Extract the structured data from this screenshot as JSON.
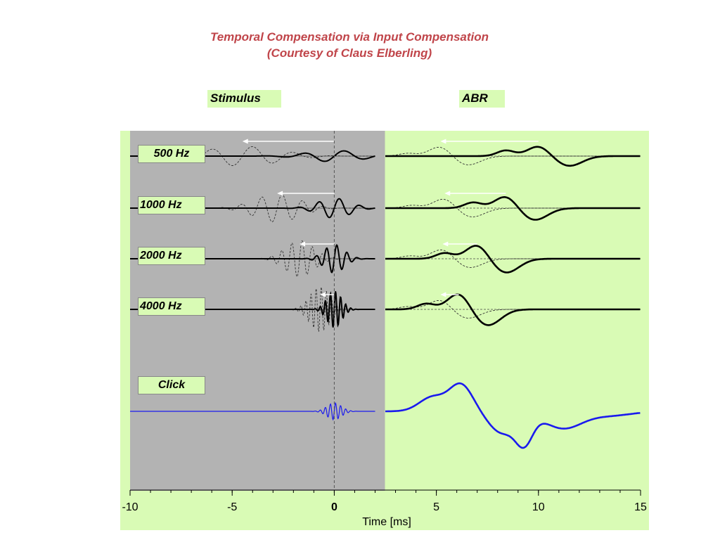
{
  "title_line1": "Temporal Compensation via Input Compensation",
  "title_line2": "(Courtesy of Claus Elberling)",
  "panels": {
    "stimulus": "Stimulus",
    "abr": "ABR"
  },
  "colors": {
    "stimulus_bg": "#b3b3b3",
    "abr_bg": "#d9fbb5",
    "title": "#c0454a",
    "click_trace": "#1a1aee",
    "trace": "#000000",
    "arrow": "#ffffff"
  },
  "chart_data": {
    "type": "line",
    "xlabel": "Time [ms]",
    "xlim": [
      -10,
      15
    ],
    "xticks": [
      -10,
      -5,
      0,
      5,
      10,
      15
    ],
    "xtick_labels": [
      "-10",
      "-5",
      "0",
      "5",
      "10",
      "15"
    ],
    "zero_line_x": 0,
    "stimulus_range": [
      -10,
      2
    ],
    "abr_range": [
      2.5,
      15
    ],
    "series": [
      {
        "label": "500 Hz",
        "stimulus_center": 0,
        "stimulus_period": 2.0,
        "stimulus_width": 1.8,
        "compensated_center": -4.5,
        "abr_peak_x": 10.0,
        "abr_trough_x": 11.5,
        "abr_compensated_peak_x": 5.2,
        "arrow_from": 0,
        "arrow_to": -4.5,
        "abr_arrow_from": 10.0,
        "abr_arrow_to": 5.2
      },
      {
        "label": "1000 Hz",
        "stimulus_center": 0,
        "stimulus_period": 1.0,
        "stimulus_width": 1.1,
        "compensated_center": -2.8,
        "abr_peak_x": 8.4,
        "abr_trough_x": 9.8,
        "abr_compensated_peak_x": 5.4,
        "arrow_from": 0,
        "arrow_to": -2.8,
        "abr_arrow_from": 8.4,
        "abr_arrow_to": 5.4
      },
      {
        "label": "2000 Hz",
        "stimulus_center": 0,
        "stimulus_period": 0.5,
        "stimulus_width": 0.7,
        "compensated_center": -1.7,
        "abr_peak_x": 7.0,
        "abr_trough_x": 8.4,
        "abr_compensated_peak_x": 5.3,
        "arrow_from": 0,
        "arrow_to": -1.7,
        "abr_arrow_from": 7.0,
        "abr_arrow_to": 5.3
      },
      {
        "label": "4000 Hz",
        "stimulus_center": 0,
        "stimulus_period": 0.25,
        "stimulus_width": 0.5,
        "compensated_center": -0.7,
        "abr_peak_x": 6.1,
        "abr_trough_x": 7.5,
        "abr_compensated_peak_x": 5.2,
        "arrow_from": 0,
        "arrow_to": -0.7,
        "abr_arrow_from": 6.1,
        "abr_arrow_to": 5.2
      },
      {
        "label": "Click",
        "abr_peak_x": 6.2,
        "abr_trough_x": 9.3
      }
    ]
  }
}
